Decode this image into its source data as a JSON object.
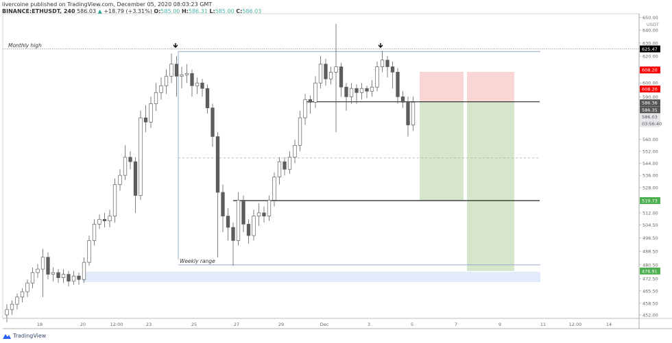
{
  "header": {
    "line1": "livercoine published on TradingView.com, December 05, 2020 08:03:23 GMT",
    "symbol": "BINANCE:ETHUSDT, 240",
    "last": "586.03",
    "change": "+18.79 (+3.31%)",
    "o_label": "O:",
    "o": "585.00",
    "h_label": "H:",
    "h": "586.31",
    "l_label": "L:",
    "l": "585.00",
    "c_label": "C:",
    "c": "586.03"
  },
  "footer": {
    "brand": "TradingView"
  },
  "colors": {
    "bull_fill": "#ffffff",
    "bear_fill": "#5d5d5d",
    "wick": "#5d5d5d",
    "stop_zone": "#f9d5d3",
    "target_zone": "#d6e6cb",
    "demand_zone": "#e3ecfa",
    "monthly_high_label_bg": "#000000",
    "stop_label_bg": "#ff0000",
    "target_label_bg": "#4caf50",
    "price_label_bg": "#555555"
  },
  "chart_data": {
    "type": "candlestick",
    "scale": "log",
    "currency": "USDT",
    "ylim": [
      448,
      652
    ],
    "y_ticks": [
      "650.00",
      "640.00",
      "630.00",
      "620.00",
      "600.00",
      "590.00",
      "560.00",
      "552.00",
      "544.00",
      "536.00",
      "528.00",
      "512.00",
      "504.50",
      "496.50",
      "488.50",
      "480.50",
      "472.50",
      "465.50",
      "458.50",
      "452.00"
    ],
    "x_ticks": [
      "18",
      "20",
      "12:00",
      "23",
      "25",
      "27",
      "29",
      "Dec",
      "3",
      "5",
      "7",
      "9",
      "11",
      "12:00",
      "14"
    ],
    "ohlc": [
      [
        452,
        458,
        448,
        455
      ],
      [
        455,
        460,
        452,
        458
      ],
      [
        458,
        464,
        455,
        462
      ],
      [
        462,
        467,
        459,
        465
      ],
      [
        465,
        472,
        462,
        470
      ],
      [
        470,
        479,
        467,
        476
      ],
      [
        476,
        481,
        473,
        478
      ],
      [
        478,
        490,
        462,
        485
      ],
      [
        485,
        488,
        472,
        475
      ],
      [
        475,
        479,
        471,
        476
      ],
      [
        476,
        478,
        470,
        473
      ],
      [
        473,
        478,
        470,
        475
      ],
      [
        475,
        477,
        468,
        471
      ],
      [
        471,
        477,
        469,
        474
      ],
      [
        474,
        476,
        469,
        472
      ],
      [
        472,
        485,
        470,
        482
      ],
      [
        482,
        498,
        480,
        495
      ],
      [
        495,
        508,
        492,
        505
      ],
      [
        505,
        511,
        502,
        508
      ],
      [
        508,
        512,
        503,
        507
      ],
      [
        507,
        514,
        503,
        510
      ],
      [
        510,
        534,
        506,
        530
      ],
      [
        530,
        540,
        526,
        536
      ],
      [
        536,
        556,
        533,
        548
      ],
      [
        548,
        552,
        540,
        545
      ],
      [
        545,
        548,
        512,
        523
      ],
      [
        523,
        580,
        520,
        575
      ],
      [
        575,
        584,
        565,
        572
      ],
      [
        572,
        590,
        568,
        585
      ],
      [
        585,
        600,
        580,
        593
      ],
      [
        593,
        604,
        588,
        598
      ],
      [
        598,
        610,
        592,
        605
      ],
      [
        605,
        622,
        600,
        614
      ],
      [
        614,
        620,
        590,
        605
      ],
      [
        605,
        612,
        596,
        606
      ],
      [
        606,
        614,
        600,
        607
      ],
      [
        607,
        610,
        590,
        598
      ],
      [
        598,
        604,
        592,
        600
      ],
      [
        600,
        603,
        590,
        596
      ],
      [
        596,
        599,
        578,
        582
      ],
      [
        582,
        585,
        555,
        562
      ],
      [
        562,
        565,
        485,
        525
      ],
      [
        525,
        530,
        500,
        510
      ],
      [
        510,
        515,
        495,
        503
      ],
      [
        503,
        506,
        480,
        495
      ],
      [
        495,
        525,
        492,
        520
      ],
      [
        520,
        523,
        500,
        505
      ],
      [
        505,
        508,
        493,
        498
      ],
      [
        498,
        514,
        495,
        510
      ],
      [
        510,
        518,
        504,
        512
      ],
      [
        512,
        516,
        506,
        510
      ],
      [
        510,
        523,
        507,
        520
      ],
      [
        520,
        538,
        516,
        535
      ],
      [
        535,
        548,
        530,
        545
      ],
      [
        545,
        548,
        536,
        540
      ],
      [
        540,
        552,
        537,
        548
      ],
      [
        548,
        560,
        544,
        556
      ],
      [
        556,
        580,
        552,
        575
      ],
      [
        575,
        592,
        570,
        588
      ],
      [
        588,
        591,
        578,
        586
      ],
      [
        586,
        605,
        582,
        600
      ],
      [
        600,
        620,
        596,
        614
      ],
      [
        614,
        618,
        598,
        603
      ],
      [
        603,
        612,
        599,
        608
      ],
      [
        608,
        645,
        565,
        612
      ],
      [
        612,
        615,
        590,
        597
      ],
      [
        597,
        600,
        580,
        590
      ],
      [
        590,
        600,
        585,
        596
      ],
      [
        596,
        599,
        585,
        593
      ],
      [
        593,
        600,
        588,
        596
      ],
      [
        596,
        598,
        589,
        594
      ],
      [
        594,
        602,
        590,
        597
      ],
      [
        597,
        616,
        594,
        612
      ],
      [
        612,
        624,
        608,
        617
      ],
      [
        617,
        620,
        604,
        612
      ],
      [
        612,
        616,
        596,
        608
      ],
      [
        608,
        611,
        585,
        590
      ],
      [
        590,
        594,
        582,
        586
      ],
      [
        586,
        590,
        562,
        570
      ],
      [
        570,
        590,
        566,
        586
      ]
    ],
    "levels": {
      "monthly_high": {
        "label": "Monthly high",
        "price": 625.47
      },
      "weekly_range": {
        "label": "Weekly range",
        "top": 623.5,
        "bottom": 480.5,
        "mid": 547.5
      },
      "entry": 586.36,
      "support": 519.73,
      "demand_zone": [
        470.5,
        476.5
      ]
    },
    "positions": [
      {
        "entry": 586.36,
        "stop": 608.2,
        "target": 519.73
      },
      {
        "entry": 586.35,
        "stop": 608.2,
        "target": 476.91
      }
    ],
    "price_labels": [
      {
        "text": "625.47",
        "price": 625.47,
        "kind": "monthly_high_label_bg"
      },
      {
        "text": "608.20",
        "price": 609.6,
        "kind": "stop_label_bg"
      },
      {
        "text": "608.20",
        "price": 605.4,
        "kind": "stop_label_bg"
      },
      {
        "text": "586.36",
        "price": 587.6,
        "kind": "price_label_bg"
      },
      {
        "text": "586.35",
        "price": 583.6,
        "kind": "price_label_bg"
      },
      {
        "text": "586.03",
        "price": 579.6,
        "kind": "plain"
      },
      {
        "text": "03:56:40",
        "price": 575.2,
        "kind": "plain"
      },
      {
        "text": "519.73",
        "price": 519.73,
        "kind": "target_label_bg"
      },
      {
        "text": "476.91",
        "price": 476.91,
        "kind": "target_label_bg"
      }
    ]
  }
}
